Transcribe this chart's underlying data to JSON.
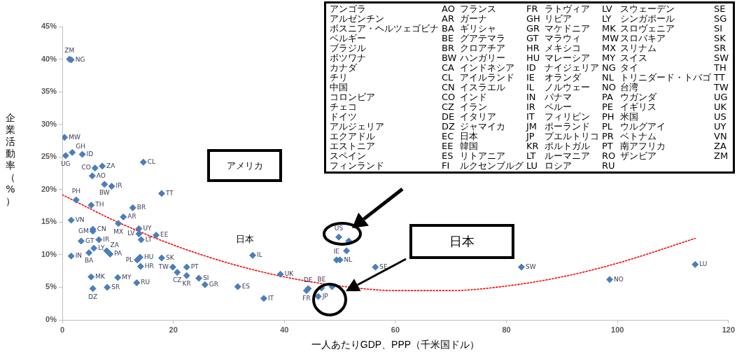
{
  "chart_data": {
    "type": "scatter",
    "xlabel": "一人あたりGDP、PPP（千米国ドル）",
    "ylabel": "企業活動率（%）",
    "xlim": [
      0,
      120
    ],
    "xticks": [
      0,
      20,
      40,
      60,
      80,
      100,
      120
    ],
    "ylim": [
      0,
      45
    ],
    "yticks": [
      {
        "value": 0,
        "label": "0%"
      },
      {
        "value": 5,
        "label": "5%"
      },
      {
        "value": 10,
        "label": "10%"
      },
      {
        "value": 15,
        "label": "15%"
      },
      {
        "value": 20,
        "label": "20%"
      },
      {
        "value": 25,
        "label": "25%"
      },
      {
        "value": 30,
        "label": "30%"
      },
      {
        "value": 35,
        "label": "35%"
      },
      {
        "value": 40,
        "label": "40%"
      },
      {
        "value": 45,
        "label": "45%"
      }
    ],
    "grid": false,
    "legend": false,
    "marker": "diamond",
    "series": [
      {
        "color": "#4a7ebb",
        "x": [
          1.3,
          1.6,
          0.4,
          3.6,
          0.6,
          1.8,
          5.9,
          7.2,
          14.6,
          5.4,
          7.6,
          8.9,
          17.9,
          2.5,
          5.2,
          12.7,
          11.0,
          1.6,
          5.5,
          5.5,
          10.1,
          13.8,
          13.8,
          16.9,
          14.2,
          3.4,
          6.6,
          5.7,
          4.8,
          8.0,
          8.6,
          1.6,
          14.0,
          13.5,
          17.9,
          14.1,
          19.9,
          22.4,
          20.7,
          22.4,
          24.6,
          25.7,
          5.2,
          10.0,
          13.4,
          5.5,
          8.1,
          31.6,
          34.3,
          36.3,
          39.3,
          44.3,
          44.0,
          46.1,
          46.7,
          48.6,
          49.8,
          51.6,
          51.2,
          49.4,
          50.0,
          56.4,
          82.7,
          98.6,
          114.0
        ],
        "values": [
          40.0,
          39.9,
          28.0,
          25.4,
          25.2,
          25.7,
          23.3,
          23.6,
          24.2,
          22.1,
          20.8,
          20.5,
          19.4,
          18.4,
          17.6,
          17.2,
          15.8,
          15.3,
          13.9,
          13.6,
          14.8,
          14.0,
          13.2,
          13.0,
          12.3,
          12.1,
          12.3,
          11.0,
          10.3,
          10.6,
          10.1,
          9.8,
          9.6,
          9.2,
          9.5,
          8.2,
          8.1,
          8.1,
          7.3,
          6.8,
          6.4,
          5.4,
          6.6,
          6.5,
          5.7,
          4.8,
          5.0,
          5.1,
          9.9,
          3.3,
          7.0,
          4.8,
          4.5,
          3.6,
          4.9,
          5.1,
          12.7,
          12.1,
          10.6,
          9.2,
          9.2,
          8.1,
          8.1,
          6.2,
          8.5
        ],
        "value_labels": [
          "ZM",
          "NG",
          "MW",
          "ID",
          "UG",
          "GH",
          "CO",
          "ZA",
          "CL",
          "AO",
          "BW",
          "IR",
          "TT",
          "PH",
          "TH",
          "BR",
          "AR",
          "VN",
          "CN",
          "GM",
          "MX",
          "UY",
          "LV",
          "EE",
          "LT",
          "GT",
          "IR",
          "LY",
          "BA",
          "ZA",
          "PA",
          "IN",
          "HU",
          "PL",
          "SK",
          "HR",
          "TW",
          "PT",
          "CZ",
          "KR",
          "SI",
          "GR",
          "MK",
          "MY",
          "RU",
          "DZ",
          "SR",
          "ES",
          "IL",
          "IT",
          "UK",
          "DE",
          "FR",
          "JP",
          "BE",
          null,
          "US",
          null,
          null,
          "IE",
          "NL",
          "SE",
          "SW",
          "NO",
          "LU"
        ]
      },
      {
        "type": "line",
        "color": "#ff0000",
        "line_style": "dotted",
        "marker": "none",
        "x": [
          0,
          10,
          20,
          30,
          40,
          50,
          60,
          70,
          80,
          90,
          100,
          114
        ],
        "values": [
          19.2,
          15.0,
          11.5,
          8.7,
          6.6,
          5.2,
          4.5,
          4.5,
          5.2,
          6.6,
          8.7,
          12.5
        ]
      }
    ],
    "annotations": [
      "アメリカ",
      "日本",
      "日本",
      "アンゴラ",
      "AO",
      "フランス",
      "FR",
      "ラトヴィア",
      "LV",
      "スウェーデン",
      "SE",
      "アルゼンチン",
      "AR",
      "ガーナ",
      "GH",
      "リビア",
      "LY",
      "シンガポール",
      "SG",
      "ボスニア・ヘルツェゴビナ",
      "BA",
      "ギリシャ",
      "GR",
      "マケドニア",
      "MK",
      "スロヴェニア",
      "SI",
      "ベルギー",
      "BE",
      "グアテマラ",
      "GT",
      "マラウィ",
      "MW",
      "スロバキア",
      "SK",
      "ブラジル",
      "BR",
      "クロアチア",
      "HR",
      "メキシコ",
      "MX",
      "スリナム",
      "SR",
      "ボツワナ",
      "BW",
      "ハンガリー",
      "HU",
      "マレーシア",
      "MY",
      "スイス",
      "SW",
      "カナダ",
      "CA",
      "インドネシア",
      "ID",
      "ナイジェリア",
      "NG",
      "タイ",
      "TH",
      "チリ",
      "CL",
      "アイルランド",
      "IE",
      "オランダ",
      "NL",
      "トリニダード・トバゴ",
      "TT",
      "中国",
      "CN",
      "イスラエル",
      "IL",
      "ノルウェー",
      "NO",
      "台湾",
      "TW",
      "コロンビア",
      "CO",
      "インド",
      "IN",
      "パナマ",
      "PA",
      "ウガンダ",
      "UG",
      "チェコ",
      "CZ",
      "イラン",
      "IR",
      "ペルー",
      "PE",
      "イギリス",
      "UK",
      "ドイツ",
      "DE",
      "イタリア",
      "IT",
      "フィリピン",
      "PH",
      "米国",
      "US",
      "アルジェリア",
      "DZ",
      "ジャマイカ",
      "JM",
      "ポーランド",
      "PL",
      "ウルグアイ",
      "UY",
      "エクアドル",
      "EC",
      "日本",
      "JP",
      "プエルトリコ",
      "PR",
      "ベトナム",
      "VN",
      "エストニア",
      "EE",
      "韓国",
      "KR",
      "ポルトガル",
      "PT",
      "南アフリカ",
      "ZA",
      "スペイン",
      "ES",
      "リトアニア",
      "LT",
      "ルーマニア",
      "RO",
      "ザンビア",
      "ZM",
      "フィンランド",
      "FI",
      "ルクセンブルグ",
      "LU",
      "ロシア",
      "RU"
    ]
  }
}
